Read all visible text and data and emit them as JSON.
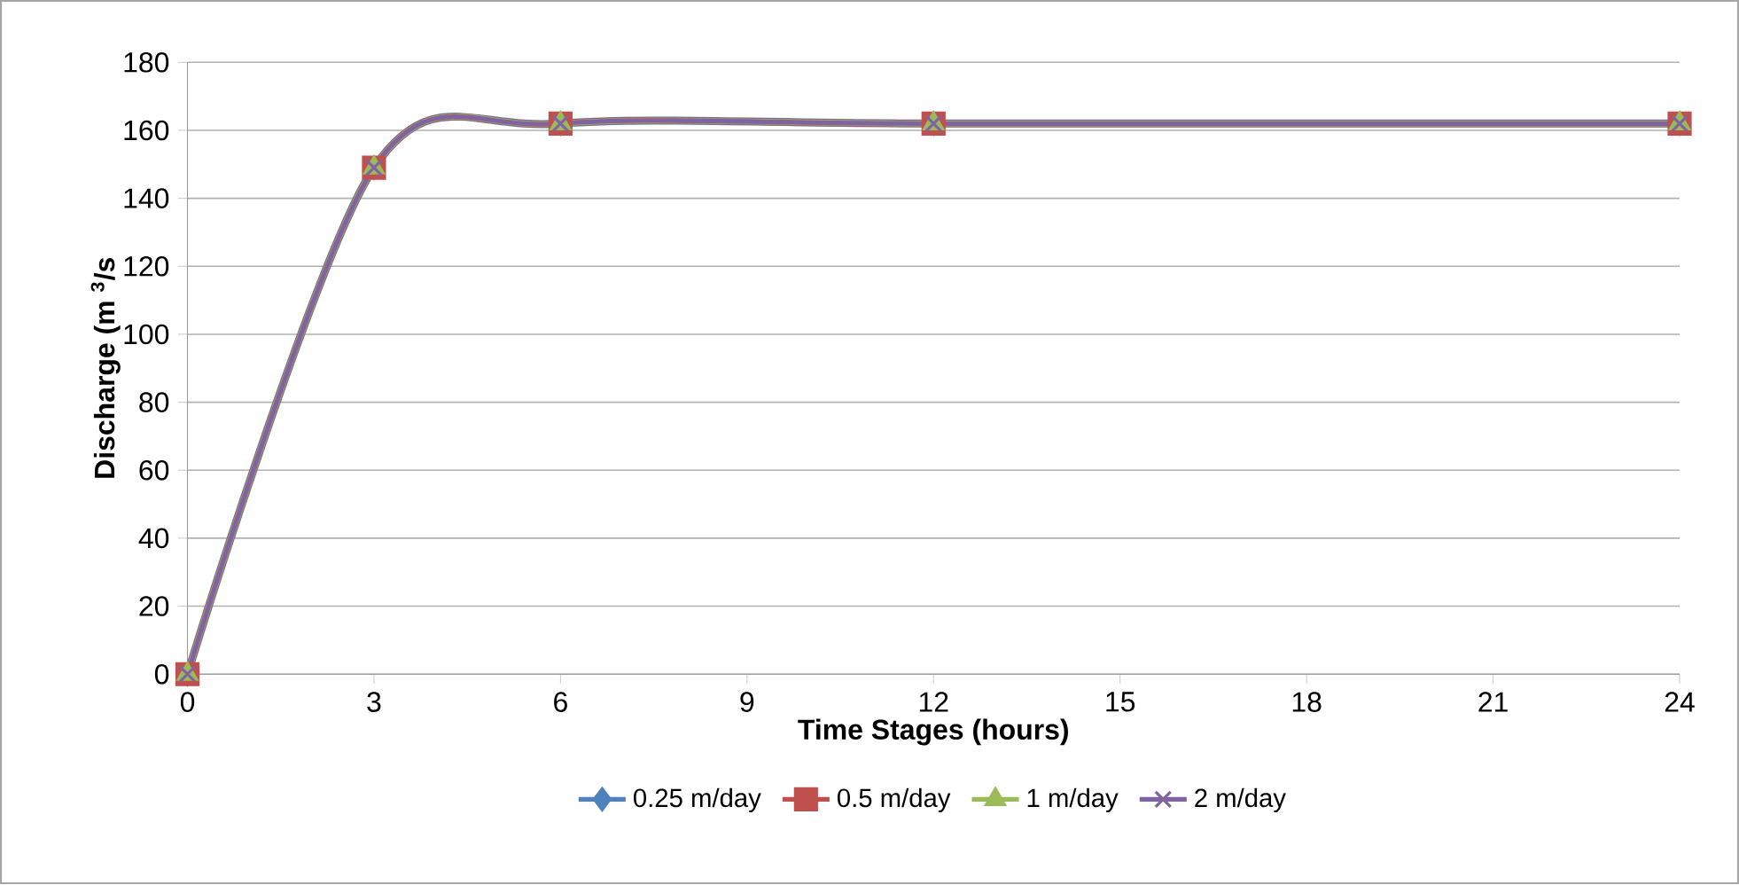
{
  "chart_data": {
    "type": "line",
    "xlabel": "Time Stages (hours)",
    "ylabel": "Discharge (m $^{3}$/s",
    "x": [
      0,
      3,
      6,
      12,
      24
    ],
    "series": [
      {
        "name": "0.25 m/day",
        "color": "#4f81bd",
        "marker": "diamond",
        "values": [
          0,
          149,
          162,
          162,
          162
        ]
      },
      {
        "name": "0.5 m/day",
        "color": "#c0504d",
        "marker": "square",
        "values": [
          0,
          149,
          162,
          162,
          162
        ]
      },
      {
        "name": "1 m/day",
        "color": "#9bbb59",
        "marker": "triangle",
        "values": [
          0,
          149,
          162,
          162,
          162
        ]
      },
      {
        "name": "2 m/day",
        "color": "#8064a2",
        "marker": "cross",
        "values": [
          0,
          149,
          162,
          162,
          162
        ]
      }
    ],
    "xlim": [
      0,
      24
    ],
    "xticks": [
      0,
      3,
      6,
      9,
      12,
      15,
      18,
      21,
      24
    ],
    "ylim": [
      0,
      180
    ],
    "yticks": [
      0,
      20,
      40,
      60,
      80,
      100,
      120,
      140,
      160,
      180
    ],
    "grid": "y",
    "legend": "bottom",
    "line_style": "solid"
  }
}
